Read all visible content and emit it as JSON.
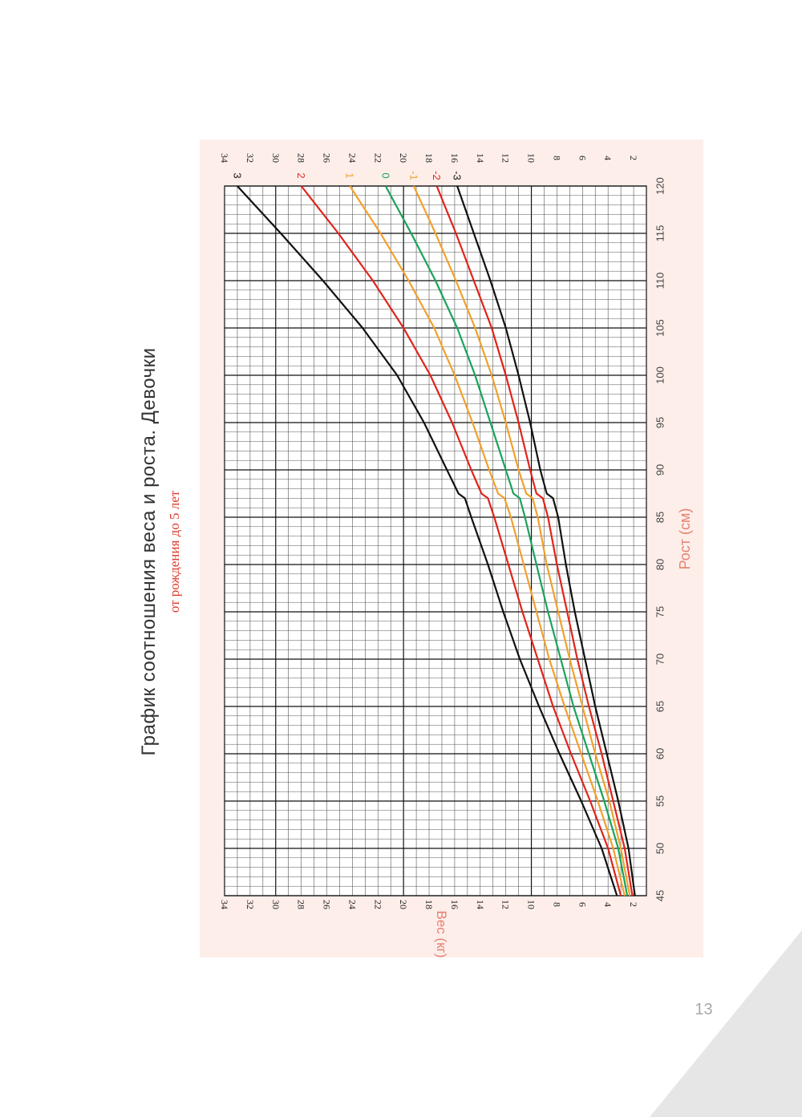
{
  "page": {
    "number": "13",
    "title": "График соотношения веса и роста. Девочки",
    "subtitle": "от рождения до 5 лет"
  },
  "colors": {
    "panel_bg": "#fdeeea",
    "accent": "#e8806f",
    "subtitle": "#e03a2a",
    "grid_minor": "#555555",
    "grid_major": "#111111",
    "corner_triangle": "#e6e6e6",
    "page_number": "#a8a8a8"
  },
  "chart_data": {
    "type": "line",
    "orientation": "rotated-90-ccw",
    "xlabel": "Рост (см)",
    "ylabel": "Вес (кг)",
    "xlim": [
      45,
      120
    ],
    "ylim": [
      1,
      34
    ],
    "x_ticks": [
      45,
      50,
      55,
      60,
      65,
      70,
      75,
      80,
      85,
      90,
      95,
      100,
      105,
      110,
      115,
      120
    ],
    "y_ticks": [
      2,
      4,
      6,
      8,
      10,
      12,
      14,
      16,
      18,
      20,
      22,
      24,
      26,
      28,
      30,
      32,
      34
    ],
    "grid": true,
    "series": [
      {
        "name": "3",
        "color": "#111111",
        "x": [
          45,
          50,
          55,
          60,
          65,
          70,
          75,
          80,
          85,
          87,
          87.5,
          90,
          95,
          100,
          105,
          110,
          115,
          120
        ],
        "y": [
          3.3,
          4.5,
          6.1,
          7.8,
          9.4,
          10.9,
          12.2,
          13.4,
          14.7,
          15.2,
          15.7,
          16.6,
          18.4,
          20.5,
          23.2,
          26.3,
          29.6,
          33.0
        ]
      },
      {
        "name": "2",
        "color": "#e0241b",
        "x": [
          45,
          50,
          55,
          60,
          65,
          70,
          75,
          80,
          85,
          87,
          87.5,
          90,
          95,
          100,
          105,
          110,
          115,
          120
        ],
        "y": [
          3.0,
          4.0,
          5.4,
          6.9,
          8.3,
          9.5,
          10.7,
          11.8,
          12.9,
          13.4,
          13.9,
          14.7,
          16.2,
          17.9,
          20.0,
          22.4,
          25.1,
          28.0
        ]
      },
      {
        "name": "1",
        "color": "#f2a02c",
        "x": [
          45,
          50,
          55,
          60,
          65,
          70,
          75,
          80,
          85,
          87,
          87.5,
          90,
          95,
          100,
          105,
          110,
          115,
          120
        ],
        "y": [
          2.7,
          3.6,
          4.8,
          6.1,
          7.4,
          8.6,
          9.6,
          10.6,
          11.6,
          12.1,
          12.6,
          13.3,
          14.6,
          16.0,
          17.6,
          19.6,
          21.8,
          24.2
        ]
      },
      {
        "name": "0",
        "color": "#1aa35a",
        "x": [
          45,
          50,
          55,
          60,
          65,
          70,
          75,
          80,
          85,
          87,
          87.5,
          90,
          95,
          100,
          105,
          110,
          115,
          120
        ],
        "y": [
          2.5,
          3.2,
          4.3,
          5.5,
          6.7,
          7.7,
          8.7,
          9.6,
          10.5,
          10.9,
          11.4,
          12.0,
          13.2,
          14.4,
          15.8,
          17.5,
          19.4,
          21.4
        ]
      },
      {
        "name": "-1",
        "color": "#f2a02c",
        "x": [
          45,
          50,
          55,
          60,
          65,
          70,
          75,
          80,
          85,
          87,
          87.5,
          90,
          95,
          100,
          105,
          110,
          115,
          120
        ],
        "y": [
          2.3,
          3.0,
          3.9,
          5.0,
          6.0,
          7.0,
          7.9,
          8.8,
          9.5,
          9.9,
          10.4,
          11.0,
          12.0,
          13.1,
          14.4,
          15.9,
          17.5,
          19.2
        ]
      },
      {
        "name": "-2",
        "color": "#e0241b",
        "x": [
          45,
          50,
          55,
          60,
          65,
          70,
          75,
          80,
          85,
          87,
          87.5,
          90,
          95,
          100,
          105,
          110,
          115,
          120
        ],
        "y": [
          2.1,
          2.7,
          3.6,
          4.5,
          5.5,
          6.4,
          7.2,
          8.0,
          8.7,
          9.1,
          9.6,
          10.1,
          11.0,
          12.0,
          13.1,
          14.5,
          15.9,
          17.4
        ]
      },
      {
        "name": "-3",
        "color": "#111111",
        "x": [
          45,
          50,
          55,
          60,
          65,
          70,
          75,
          80,
          85,
          87,
          87.5,
          90,
          95,
          100,
          105,
          110,
          115,
          120
        ],
        "y": [
          1.9,
          2.4,
          3.2,
          4.1,
          5.0,
          5.8,
          6.6,
          7.3,
          7.9,
          8.3,
          8.8,
          9.3,
          10.1,
          11.0,
          12.0,
          13.2,
          14.5,
          15.8
        ]
      }
    ]
  }
}
